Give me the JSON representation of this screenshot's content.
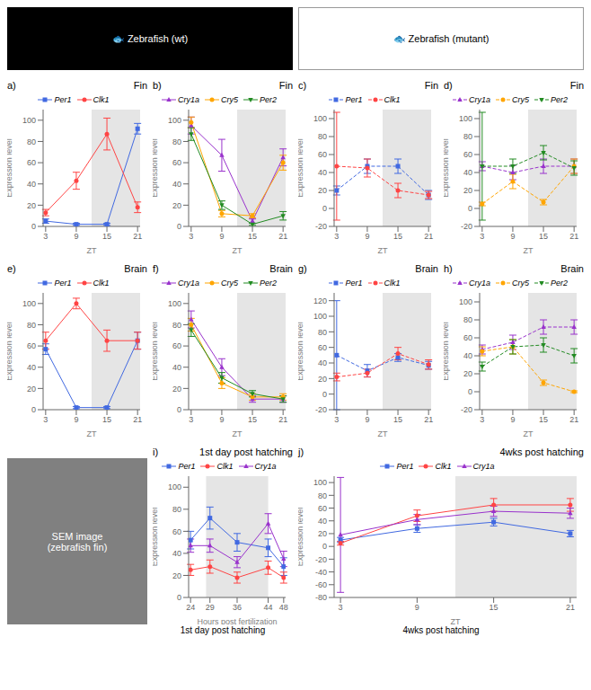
{
  "chart_data": [
    {
      "type": "image",
      "color": "#000000",
      "annotations": [
        "🐟 Zebrafish (wt)"
      ]
    },
    {
      "type": "image",
      "color": "#FFFFFF",
      "annotations": [
        "🐟 Zebrafish (mutant)"
      ]
    },
    {
      "type": "line",
      "title": "Fin",
      "annotations": [
        "a)"
      ],
      "xlabel": "ZT",
      "ylabel": "Expression level",
      "x": [
        3,
        9,
        15,
        21
      ],
      "xlim": [
        2.5,
        21.5
      ],
      "xticks": [
        3,
        9,
        15,
        21
      ],
      "ylim": [
        0,
        110
      ],
      "yticks": [
        0,
        20,
        40,
        60,
        80,
        100
      ],
      "legend": "top",
      "grid": false,
      "shade": {
        "range": [
          12,
          24
        ],
        "color": "#D3D3D3"
      },
      "series": [
        {
          "name": "Per1",
          "color": "#4169E1",
          "marker": "square",
          "line_style": "solid",
          "values": [
            5,
            2,
            2,
            92
          ],
          "errors": [
            2,
            1,
            1,
            5
          ]
        },
        {
          "name": "Clk1",
          "color": "#FF4444",
          "marker": "circle",
          "line_style": "solid",
          "values": [
            13,
            43,
            87,
            18
          ],
          "errors": [
            3,
            8,
            15,
            5
          ]
        }
      ]
    },
    {
      "type": "line",
      "title": "Fin",
      "annotations": [
        "b)"
      ],
      "xlabel": "ZT",
      "ylabel": "Expression level",
      "x": [
        3,
        9,
        15,
        21
      ],
      "xlim": [
        2.5,
        21.5
      ],
      "xticks": [
        3,
        9,
        15,
        21
      ],
      "ylim": [
        0,
        110
      ],
      "yticks": [
        0,
        20,
        40,
        60,
        80,
        100
      ],
      "legend": "top",
      "grid": false,
      "shade": {
        "range": [
          12,
          24
        ],
        "color": "#D3D3D3"
      },
      "series": [
        {
          "name": "Cry1a",
          "color": "#9932CC",
          "marker": "triangle-up",
          "line_style": "solid",
          "values": [
            95,
            67,
            5,
            65
          ],
          "errors": [
            8,
            15,
            2,
            8
          ]
        },
        {
          "name": "Cry5",
          "color": "#FFA500",
          "marker": "circle",
          "line_style": "solid",
          "values": [
            98,
            12,
            10,
            60
          ],
          "errors": [
            5,
            3,
            2,
            7
          ]
        },
        {
          "name": "Per2",
          "color": "#228B22",
          "marker": "triangle-down",
          "line_style": "solid",
          "values": [
            87,
            20,
            2,
            10
          ],
          "errors": [
            6,
            4,
            1,
            4
          ]
        }
      ]
    },
    {
      "type": "line",
      "title": "Fin",
      "annotations": [
        "c)"
      ],
      "xlabel": "ZT",
      "ylabel": "Expression level",
      "x": [
        3,
        9,
        15,
        21
      ],
      "xlim": [
        2.5,
        21.5
      ],
      "xticks": [
        3,
        9,
        15,
        21
      ],
      "ylim": [
        -20,
        110
      ],
      "yticks": [
        -20,
        0,
        20,
        40,
        60,
        80,
        100
      ],
      "legend": "top",
      "grid": false,
      "shade": {
        "range": [
          12,
          24
        ],
        "color": "#D3D3D3"
      },
      "series": [
        {
          "name": "Per1",
          "color": "#4169E1",
          "marker": "square",
          "line_style": "dashed",
          "values": [
            20,
            47,
            47,
            15
          ],
          "errors": [
            5,
            8,
            8,
            5
          ]
        },
        {
          "name": "Clk1",
          "color": "#FF4444",
          "marker": "circle",
          "line_style": "dashed",
          "values": [
            47,
            45,
            20,
            15
          ],
          "errors": [
            60,
            10,
            8,
            4
          ]
        }
      ]
    },
    {
      "type": "line",
      "title": "Fin",
      "annotations": [
        "d)"
      ],
      "xlabel": "ZT",
      "ylabel": "Expression level",
      "x": [
        3,
        9,
        15,
        21
      ],
      "xlim": [
        2.5,
        21.5
      ],
      "xticks": [
        3,
        9,
        15,
        21
      ],
      "ylim": [
        -20,
        110
      ],
      "yticks": [
        -20,
        0,
        20,
        40,
        60,
        80,
        100
      ],
      "legend": "top",
      "grid": false,
      "shade": {
        "range": [
          12,
          24
        ],
        "color": "#D3D3D3"
      },
      "series": [
        {
          "name": "Cry1a",
          "color": "#9932CC",
          "marker": "triangle-up",
          "line_style": "dashed",
          "values": [
            47,
            40,
            47,
            47
          ],
          "errors": [
            5,
            8,
            8,
            8
          ]
        },
        {
          "name": "Cry5",
          "color": "#FFA500",
          "marker": "circle",
          "line_style": "dashed",
          "values": [
            5,
            30,
            7,
            47
          ],
          "errors": [
            2,
            8,
            3,
            8
          ]
        },
        {
          "name": "Per2",
          "color": "#228B22",
          "marker": "triangle-down",
          "line_style": "dashed",
          "values": [
            47,
            47,
            62,
            45
          ],
          "errors": [
            60,
            8,
            8,
            8
          ]
        }
      ]
    },
    {
      "type": "line",
      "title": "Brain",
      "annotations": [
        "e)"
      ],
      "xlabel": "ZT",
      "ylabel": "Expression level",
      "x": [
        3,
        9,
        15,
        21
      ],
      "xlim": [
        2.5,
        21.5
      ],
      "xticks": [
        3,
        9,
        15,
        21
      ],
      "ylim": [
        0,
        110
      ],
      "yticks": [
        0,
        20,
        40,
        60,
        80,
        100
      ],
      "legend": "top",
      "grid": false,
      "shade": {
        "range": [
          12,
          24
        ],
        "color": "#D3D3D3"
      },
      "series": [
        {
          "name": "Per1",
          "color": "#4169E1",
          "marker": "square",
          "line_style": "solid",
          "values": [
            57,
            2,
            2,
            65
          ],
          "errors": [
            5,
            1,
            1,
            8
          ]
        },
        {
          "name": "Clk1",
          "color": "#FF4444",
          "marker": "circle",
          "line_style": "solid",
          "values": [
            65,
            100,
            65,
            65
          ],
          "errors": [
            8,
            5,
            10,
            8
          ]
        }
      ]
    },
    {
      "type": "line",
      "title": "Brain",
      "annotations": [
        "f)"
      ],
      "xlabel": "ZT",
      "ylabel": "Expression level",
      "x": [
        3,
        9,
        15,
        21
      ],
      "xlim": [
        2.5,
        21.5
      ],
      "xticks": [
        3,
        9,
        15,
        21
      ],
      "ylim": [
        0,
        110
      ],
      "yticks": [
        0,
        20,
        40,
        60,
        80,
        100
      ],
      "legend": "top",
      "grid": false,
      "shade": {
        "range": [
          12,
          24
        ],
        "color": "#D3D3D3"
      },
      "series": [
        {
          "name": "Cry1a",
          "color": "#9932CC",
          "marker": "triangle-up",
          "line_style": "solid",
          "values": [
            85,
            40,
            10,
            10
          ],
          "errors": [
            8,
            8,
            3,
            3
          ]
        },
        {
          "name": "Cry5",
          "color": "#FFA500",
          "marker": "circle",
          "line_style": "solid",
          "values": [
            80,
            25,
            12,
            12
          ],
          "errors": [
            6,
            5,
            3,
            3
          ]
        },
        {
          "name": "Per2",
          "color": "#228B22",
          "marker": "triangle-down",
          "line_style": "solid",
          "values": [
            75,
            30,
            15,
            10
          ],
          "errors": [
            6,
            5,
            3,
            3
          ]
        }
      ]
    },
    {
      "type": "line",
      "title": "Brain",
      "annotations": [
        "g)"
      ],
      "xlabel": "ZT",
      "ylabel": "Expression level",
      "x": [
        3,
        9,
        15,
        21
      ],
      "xlim": [
        2.5,
        21.5
      ],
      "xticks": [
        3,
        9,
        15,
        21
      ],
      "ylim": [
        -20,
        130
      ],
      "yticks": [
        -20,
        0,
        20,
        40,
        60,
        80,
        100,
        120
      ],
      "legend": "top",
      "grid": false,
      "shade": {
        "range": [
          12,
          24
        ],
        "color": "#D3D3D3"
      },
      "series": [
        {
          "name": "Per1",
          "color": "#4169E1",
          "marker": "square",
          "line_style": "dashed",
          "values": [
            50,
            30,
            47,
            37
          ],
          "errors": [
            70,
            8,
            5,
            5
          ]
        },
        {
          "name": "Clk1",
          "color": "#FF4444",
          "marker": "circle",
          "line_style": "dashed",
          "values": [
            22,
            27,
            52,
            38
          ],
          "errors": [
            5,
            5,
            8,
            6
          ]
        }
      ]
    },
    {
      "type": "line",
      "title": "Brain",
      "annotations": [
        "h)"
      ],
      "xlabel": "ZT",
      "ylabel": "Expression level",
      "x": [
        3,
        9,
        15,
        21
      ],
      "xlim": [
        2.5,
        21.5
      ],
      "xticks": [
        3,
        9,
        15,
        21
      ],
      "ylim": [
        -20,
        110
      ],
      "yticks": [
        -20,
        0,
        20,
        40,
        60,
        80,
        100
      ],
      "legend": "top",
      "grid": false,
      "shade": {
        "range": [
          12,
          24
        ],
        "color": "#D3D3D3"
      },
      "series": [
        {
          "name": "Cry1a",
          "color": "#9932CC",
          "marker": "triangle-up",
          "line_style": "dashed",
          "values": [
            47,
            55,
            72,
            72
          ],
          "errors": [
            5,
            8,
            8,
            8
          ]
        },
        {
          "name": "Cry5",
          "color": "#FFA500",
          "marker": "circle",
          "line_style": "dashed",
          "values": [
            45,
            50,
            10,
            0
          ],
          "errors": [
            5,
            8,
            3,
            1
          ]
        },
        {
          "name": "Per2",
          "color": "#228B22",
          "marker": "triangle-down",
          "line_style": "dashed",
          "values": [
            28,
            50,
            52,
            40
          ],
          "errors": [
            5,
            8,
            8,
            8
          ]
        }
      ]
    },
    {
      "type": "image",
      "color": "#808080",
      "annotations": [
        "SEM image\n(zebrafish fin)"
      ]
    },
    {
      "type": "line",
      "title": "1st day post hatching",
      "annotations": [
        "i)",
        "1st day post hatching"
      ],
      "xlabel": "Hours post fertilization",
      "ylabel": "Expression level",
      "x": [
        24,
        29,
        36,
        44,
        48
      ],
      "xlim": [
        23.5,
        48.5
      ],
      "xticks": [
        24,
        29,
        36,
        44,
        48
      ],
      "ylim": [
        0,
        110
      ],
      "yticks": [
        0,
        20,
        40,
        60,
        80,
        100
      ],
      "legend": "top",
      "grid": false,
      "shade": {
        "range": [
          28,
          44
        ],
        "color": "#D3D3D3"
      },
      "series": [
        {
          "name": "Per1",
          "color": "#4169E1",
          "marker": "square",
          "line_style": "solid",
          "values": [
            52,
            72,
            50,
            45,
            28
          ],
          "errors": [
            8,
            10,
            8,
            8,
            8
          ]
        },
        {
          "name": "Clk1",
          "color": "#FF4444",
          "marker": "circle",
          "line_style": "solid",
          "values": [
            25,
            28,
            18,
            27,
            18
          ],
          "errors": [
            5,
            6,
            5,
            6,
            5
          ]
        },
        {
          "name": "Cry1a",
          "color": "#9932CC",
          "marker": "triangle-up",
          "line_style": "solid",
          "values": [
            47,
            47,
            32,
            67,
            35
          ],
          "errors": [
            6,
            6,
            5,
            9,
            7
          ]
        }
      ]
    },
    {
      "type": "line",
      "title": "4wks post hatching",
      "annotations": [
        "j)",
        "4wks post hatching"
      ],
      "xlabel": "ZT",
      "ylabel": "Expression level",
      "x": [
        3,
        9,
        15,
        21
      ],
      "xlim": [
        2.5,
        21.5
      ],
      "xticks": [
        3,
        9,
        15,
        21
      ],
      "ylim": [
        -80,
        110
      ],
      "yticks": [
        -80,
        -60,
        -40,
        -20,
        0,
        20,
        40,
        60,
        80,
        100
      ],
      "legend": "top",
      "grid": false,
      "shade": {
        "range": [
          12,
          24
        ],
        "color": "#D3D3D3"
      },
      "series": [
        {
          "name": "Per1",
          "color": "#4169E1",
          "marker": "square",
          "line_style": "solid",
          "values": [
            10,
            28,
            38,
            20
          ],
          "errors": [
            4,
            6,
            6,
            5
          ]
        },
        {
          "name": "Clk1",
          "color": "#FF4444",
          "marker": "circle",
          "line_style": "solid",
          "values": [
            5,
            48,
            65,
            65
          ],
          "errors": [
            3,
            9,
            10,
            10
          ]
        },
        {
          "name": "Cry1a",
          "color": "#9932CC",
          "marker": "triangle-up",
          "line_style": "solid",
          "values": [
            18,
            42,
            55,
            52
          ],
          "errors": [
            90,
            8,
            8,
            8
          ]
        }
      ]
    }
  ]
}
